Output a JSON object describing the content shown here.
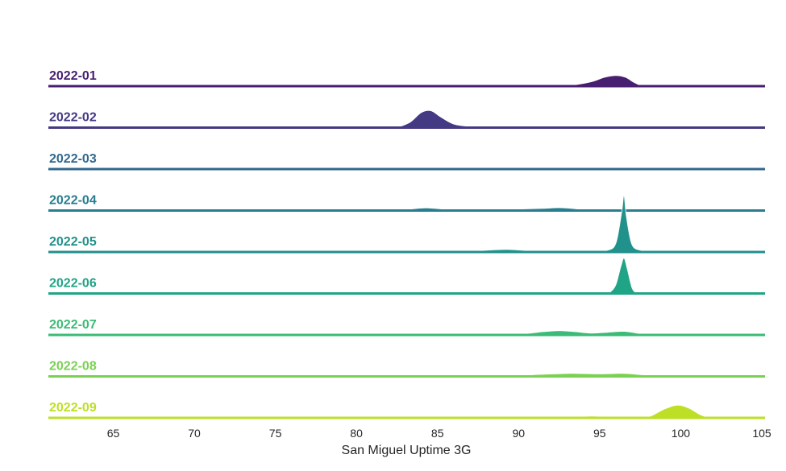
{
  "chart_data": {
    "type": "area",
    "title": "",
    "xlabel": "San Miguel Uptime 3G",
    "ylabel": "",
    "xlim": [
      61,
      105.2
    ],
    "xticks": [
      65,
      70,
      75,
      80,
      85,
      90,
      95,
      100,
      105
    ],
    "xtick_labels": [
      "65",
      "70",
      "75",
      "80",
      "85",
      "90",
      "95",
      "100",
      "105"
    ],
    "grid": false,
    "legend": "none",
    "series": [
      {
        "name": "2022-01",
        "color": "#481f70",
        "x": [
          92.5,
          93.5,
          94.5,
          95.3,
          96.0,
          96.6,
          97.1,
          97.6
        ],
        "y": [
          0,
          0.08,
          0.25,
          0.5,
          0.6,
          0.5,
          0.22,
          0
        ]
      },
      {
        "name": "2022-02",
        "color": "#443983",
        "x": [
          82.5,
          83.3,
          84.0,
          84.6,
          85.2,
          86.0,
          87.0,
          88.5,
          89.2,
          89.8,
          90.4,
          91.0
        ],
        "y": [
          0,
          0.3,
          0.85,
          0.95,
          0.6,
          0.2,
          0.07,
          0.07,
          0.03,
          0.08,
          0.02,
          0
        ]
      },
      {
        "name": "2022-03",
        "color": "#31688e",
        "x": [
          79.5,
          80.5,
          81.5,
          82.5,
          83.5,
          85.0,
          88.0,
          89.0,
          89.8,
          90.6,
          91.5
        ],
        "y": [
          0,
          0.02,
          0.04,
          0.03,
          0,
          0,
          0,
          0.02,
          0.05,
          0.02,
          0
        ]
      },
      {
        "name": "2022-04",
        "color": "#287d8e",
        "x": [
          82.0,
          83.3,
          84.3,
          85.3,
          86.5,
          88.0,
          90.0,
          91.5,
          92.5,
          93.5,
          94.5
        ],
        "y": [
          0,
          0.08,
          0.15,
          0.08,
          0,
          0.02,
          0.08,
          0.12,
          0.16,
          0.1,
          0
        ]
      },
      {
        "name": "2022-05",
        "color": "#21918c",
        "x": [
          86.5,
          88.0,
          89.3,
          90.5,
          91.5,
          93.5,
          94.5,
          95.5,
          96.0,
          96.35,
          96.5,
          96.65,
          97.0,
          97.6,
          98.0
        ],
        "y": [
          0,
          0.1,
          0.14,
          0.08,
          0,
          0,
          0.04,
          0.1,
          0.5,
          2.2,
          3.2,
          2.0,
          0.4,
          0.08,
          0
        ]
      },
      {
        "name": "2022-06",
        "color": "#20a486",
        "x": [
          93.0,
          93.4,
          93.8,
          94.2,
          94.5,
          94.8,
          95.1,
          95.4,
          95.7,
          96.0,
          96.3,
          96.5,
          96.7,
          97.0,
          97.3
        ],
        "y": [
          0,
          0.05,
          0.04,
          0.01,
          0.03,
          0.01,
          0.03,
          0.02,
          0.12,
          0.5,
          1.5,
          2.0,
          1.4,
          0.3,
          0
        ]
      },
      {
        "name": "2022-07",
        "color": "#3bbb75",
        "x": [
          89.0,
          90.5,
          91.5,
          92.5,
          93.5,
          94.5,
          95.5,
          96.5,
          97.3,
          98.0
        ],
        "y": [
          0,
          0.08,
          0.18,
          0.24,
          0.18,
          0.1,
          0.15,
          0.2,
          0.1,
          0
        ]
      },
      {
        "name": "2022-08",
        "color": "#7ad151",
        "x": [
          89.5,
          91.0,
          92.5,
          93.5,
          95.0,
          96.5,
          97.5,
          98.5,
          99.5,
          100.5,
          101.5
        ],
        "y": [
          0,
          0.1,
          0.15,
          0.17,
          0.14,
          0.17,
          0.1,
          0.04,
          0.07,
          0.03,
          0
        ]
      },
      {
        "name": "2022-09",
        "color": "#bddf26",
        "x": [
          92.5,
          93.5,
          94.5,
          95.5,
          97.0,
          98.0,
          99.0,
          99.8,
          100.5,
          101.2,
          101.8
        ],
        "y": [
          0,
          0.05,
          0.1,
          0.06,
          0,
          0.05,
          0.5,
          0.72,
          0.55,
          0.18,
          0
        ]
      }
    ]
  }
}
